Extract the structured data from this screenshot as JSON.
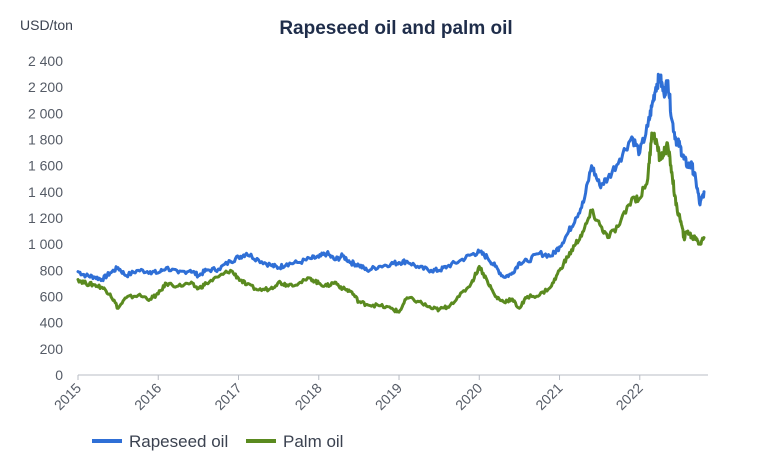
{
  "chart_data": {
    "type": "line",
    "title": "Rapeseed oil and palm oil",
    "ylabel": "USD/ton",
    "xlabel": "",
    "xlim": [
      2015.0,
      2022.85
    ],
    "ylim": [
      0,
      2400
    ],
    "y_ticks": [
      0,
      200,
      400,
      600,
      800,
      1000,
      1200,
      1400,
      1600,
      1800,
      2000,
      2200,
      2400
    ],
    "y_tick_labels": [
      "0",
      "200",
      "400",
      "600",
      "800",
      "1 000",
      "1 200",
      "1 400",
      "1 600",
      "1 800",
      "2 000",
      "2 200",
      "2 400"
    ],
    "x_ticks": [
      2015,
      2016,
      2017,
      2018,
      2019,
      2020,
      2021,
      2022
    ],
    "x_tick_labels": [
      "2015",
      "2016",
      "2017",
      "2018",
      "2019",
      "2020",
      "2021",
      "2022"
    ],
    "grid": false,
    "legend_position": "bottom-left",
    "series": [
      {
        "name": "Rapeseed oil",
        "color": "#2f6fd6",
        "x": [
          2015.0,
          2015.1,
          2015.2,
          2015.3,
          2015.4,
          2015.5,
          2015.6,
          2015.75,
          2015.9,
          2016.0,
          2016.1,
          2016.25,
          2016.4,
          2016.5,
          2016.6,
          2016.75,
          2016.9,
          2017.0,
          2017.1,
          2017.25,
          2017.4,
          2017.5,
          2017.6,
          2017.75,
          2017.9,
          2018.0,
          2018.1,
          2018.2,
          2018.3,
          2018.4,
          2018.5,
          2018.6,
          2018.75,
          2018.9,
          2019.0,
          2019.1,
          2019.25,
          2019.4,
          2019.5,
          2019.6,
          2019.75,
          2019.9,
          2020.0,
          2020.1,
          2020.2,
          2020.3,
          2020.4,
          2020.5,
          2020.6,
          2020.75,
          2020.9,
          2021.0,
          2021.1,
          2021.2,
          2021.3,
          2021.4,
          2021.5,
          2021.6,
          2021.75,
          2021.9,
          2022.0,
          2022.1,
          2022.15,
          2022.2,
          2022.25,
          2022.3,
          2022.35,
          2022.4,
          2022.45,
          2022.5,
          2022.55,
          2022.6,
          2022.65,
          2022.7,
          2022.75,
          2022.8
        ],
        "values": [
          790,
          760,
          750,
          730,
          780,
          820,
          760,
          800,
          790,
          780,
          820,
          780,
          800,
          760,
          800,
          810,
          870,
          900,
          930,
          880,
          840,
          820,
          850,
          860,
          890,
          900,
          930,
          880,
          910,
          860,
          840,
          800,
          830,
          850,
          860,
          870,
          820,
          800,
          800,
          830,
          870,
          920,
          940,
          900,
          830,
          750,
          770,
          860,
          870,
          930,
          910,
          980,
          1080,
          1200,
          1320,
          1600,
          1450,
          1500,
          1650,
          1820,
          1700,
          1900,
          2050,
          2200,
          2280,
          2150,
          2250,
          1950,
          1800,
          1750,
          1650,
          1600,
          1600,
          1480,
          1300,
          1400
        ]
      },
      {
        "name": "Palm oil",
        "color": "#5a8a1f",
        "x": [
          2015.0,
          2015.1,
          2015.2,
          2015.3,
          2015.4,
          2015.5,
          2015.6,
          2015.75,
          2015.9,
          2016.0,
          2016.1,
          2016.25,
          2016.4,
          2016.5,
          2016.6,
          2016.75,
          2016.9,
          2017.0,
          2017.1,
          2017.25,
          2017.4,
          2017.5,
          2017.6,
          2017.75,
          2017.9,
          2018.0,
          2018.1,
          2018.2,
          2018.3,
          2018.4,
          2018.5,
          2018.6,
          2018.75,
          2018.9,
          2019.0,
          2019.1,
          2019.25,
          2019.4,
          2019.5,
          2019.6,
          2019.75,
          2019.9,
          2020.0,
          2020.1,
          2020.2,
          2020.3,
          2020.4,
          2020.5,
          2020.6,
          2020.75,
          2020.9,
          2021.0,
          2021.1,
          2021.2,
          2021.3,
          2021.4,
          2021.5,
          2021.6,
          2021.75,
          2021.9,
          2022.0,
          2022.1,
          2022.15,
          2022.2,
          2022.25,
          2022.3,
          2022.35,
          2022.4,
          2022.45,
          2022.5,
          2022.55,
          2022.6,
          2022.65,
          2022.7,
          2022.75,
          2022.8
        ],
        "values": [
          730,
          700,
          690,
          670,
          620,
          510,
          590,
          610,
          580,
          620,
          700,
          680,
          700,
          660,
          700,
          750,
          800,
          740,
          690,
          650,
          660,
          710,
          690,
          700,
          740,
          700,
          680,
          710,
          660,
          640,
          560,
          540,
          530,
          510,
          480,
          590,
          560,
          510,
          500,
          520,
          600,
          700,
          830,
          720,
          600,
          560,
          580,
          510,
          600,
          610,
          680,
          800,
          900,
          1000,
          1100,
          1250,
          1150,
          1050,
          1150,
          1350,
          1350,
          1500,
          1850,
          1800,
          1650,
          1700,
          1750,
          1550,
          1300,
          1200,
          1050,
          1100,
          1050,
          1050,
          1000,
          1050
        ]
      }
    ]
  }
}
